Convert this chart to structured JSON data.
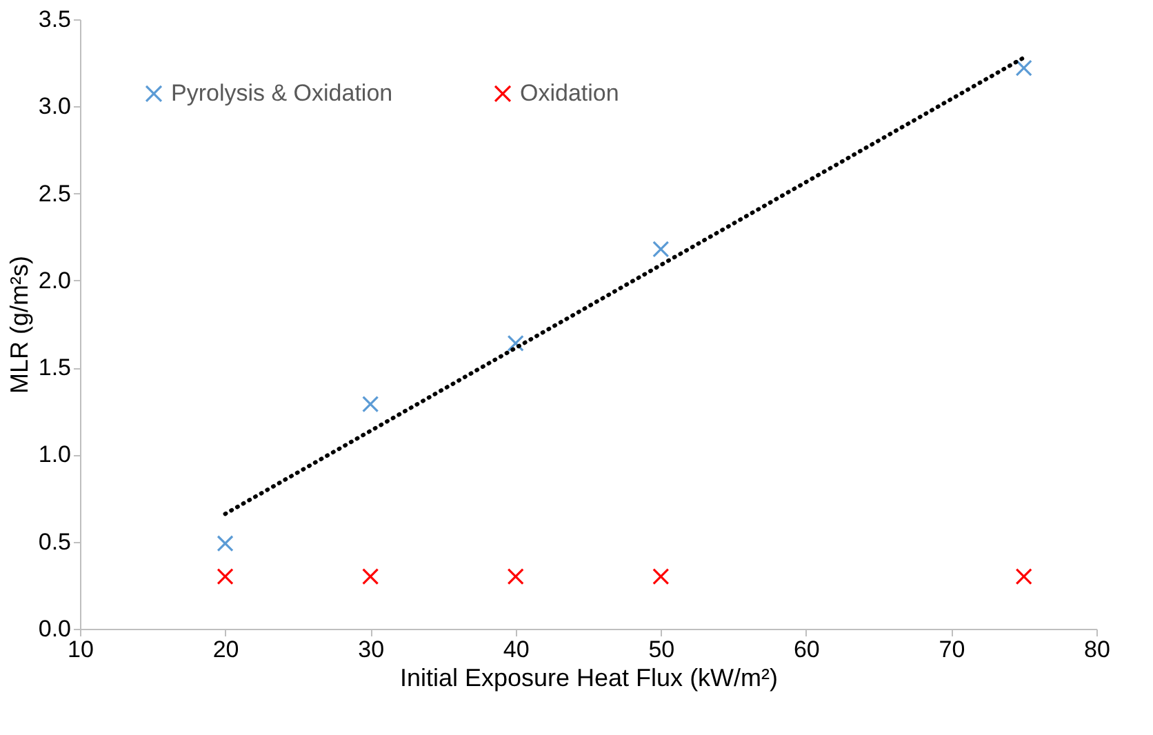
{
  "chart_data": {
    "type": "scatter",
    "xlabel": "Initial Exposure Heat Flux (kW/m²)",
    "ylabel": "MLR (g/m²s)",
    "xlim": [
      10,
      80
    ],
    "xticks": [
      10,
      20,
      30,
      40,
      50,
      60,
      70,
      80
    ],
    "ylim": [
      0,
      3.5
    ],
    "yticks": [
      {
        "value": 0,
        "label": "0.0"
      },
      {
        "value": 0.5,
        "label": "0.5"
      },
      {
        "value": 1,
        "label": "1.0"
      },
      {
        "value": 1.5,
        "label": "1.5"
      },
      {
        "value": 2,
        "label": "2.0"
      },
      {
        "value": 2.5,
        "label": "2.5"
      },
      {
        "value": 3,
        "label": "3.0"
      },
      {
        "value": 3.5,
        "label": "3.5"
      }
    ],
    "marker": "cross",
    "grid": false,
    "legend": "top left",
    "series": [
      {
        "name": "Pyrolysis & Oxidation",
        "color": "#5b9bd5",
        "x": [
          20,
          30,
          40,
          50,
          75
        ],
        "values": [
          0.49,
          1.29,
          1.64,
          2.18,
          3.22
        ]
      },
      {
        "name": "Oxidation",
        "color": "#ff0000",
        "x": [
          20,
          30,
          40,
          50,
          75
        ],
        "values": [
          0.3,
          0.3,
          0.3,
          0.3,
          0.3
        ]
      },
      {
        "type": "line",
        "marker": "none",
        "color": "#000000",
        "line_style": "dotted",
        "x": [
          20,
          75
        ],
        "values": [
          0.66,
          3.28
        ]
      }
    ]
  }
}
